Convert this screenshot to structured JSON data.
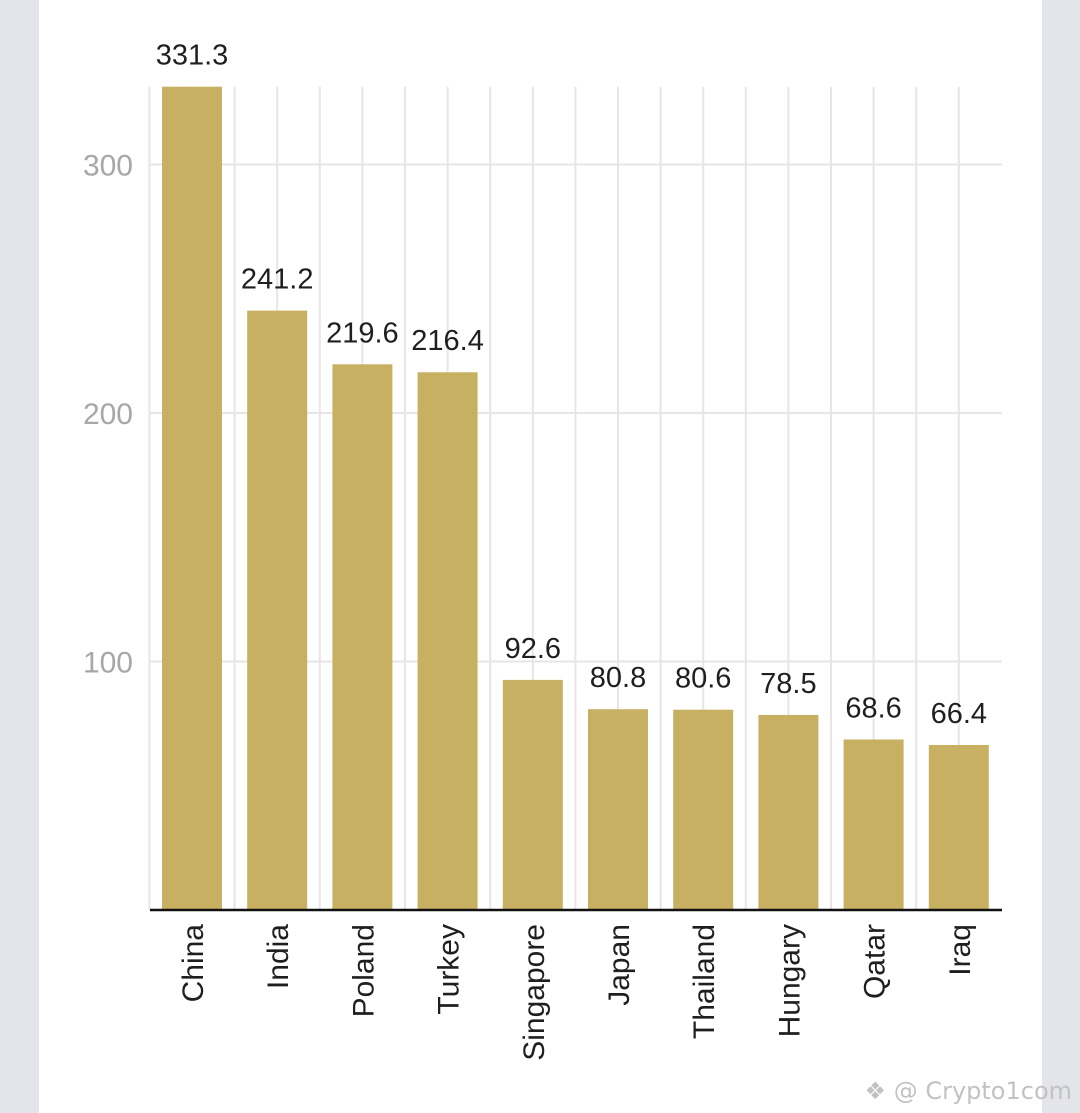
{
  "chart_data": {
    "type": "bar",
    "title": "",
    "xlabel": "",
    "ylabel": "",
    "categories": [
      "China",
      "India",
      "Poland",
      "Turkey",
      "Singapore",
      "Japan",
      "Thailand",
      "Hungary",
      "Qatar",
      "Iraq"
    ],
    "values": [
      331.3,
      241.2,
      219.6,
      216.4,
      92.6,
      80.8,
      80.6,
      78.5,
      68.6,
      66.4
    ],
    "ylim": [
      0,
      331.3
    ],
    "yticks": [
      100,
      200,
      300
    ],
    "bar_color": "#c8b062",
    "grid": true,
    "legend": "none"
  },
  "watermark": {
    "text": "@ Crypto1com"
  }
}
